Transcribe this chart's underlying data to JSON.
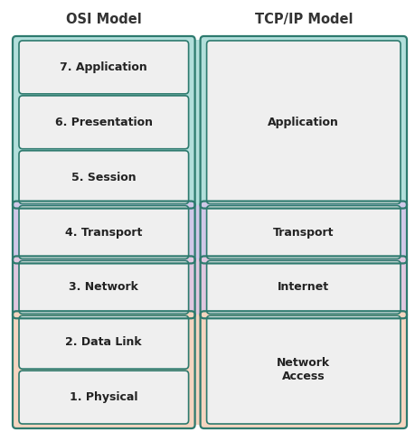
{
  "osi_header": "OSI Model",
  "tcp_header": "TCP/IP Model",
  "bg_color": "#ffffff",
  "osi_layers": [
    {
      "label": "7. Application",
      "group": "application"
    },
    {
      "label": "6. Presentation",
      "group": "application"
    },
    {
      "label": "5. Session",
      "group": "application"
    },
    {
      "label": "4. Transport",
      "group": "transport"
    },
    {
      "label": "3. Network",
      "group": "internet"
    },
    {
      "label": "2. Data Link",
      "group": "network_access"
    },
    {
      "label": "1. Physical",
      "group": "network_access"
    }
  ],
  "tcp_layers": [
    {
      "label": "Application",
      "group": "application",
      "spans": 3
    },
    {
      "label": "Transport",
      "group": "transport",
      "spans": 1
    },
    {
      "label": "Internet",
      "group": "internet",
      "spans": 1
    },
    {
      "label": "Network\nAccess",
      "group": "network_access",
      "spans": 2
    }
  ],
  "group_order": [
    "application",
    "transport",
    "internet",
    "network_access"
  ],
  "group_spans": {
    "application": 3,
    "transport": 1,
    "internet": 1,
    "network_access": 2
  },
  "group_colors": {
    "application": "#b2dfdb",
    "transport": "#d0c8e8",
    "internet": "#e0c8e0",
    "network_access": "#f5d5c0"
  },
  "box_fill": "#efefef",
  "box_edge": "#2d7a6e",
  "text_color": "#222222",
  "header_color": "#333333",
  "figw": 4.6,
  "figh": 4.78,
  "dpi": 100
}
